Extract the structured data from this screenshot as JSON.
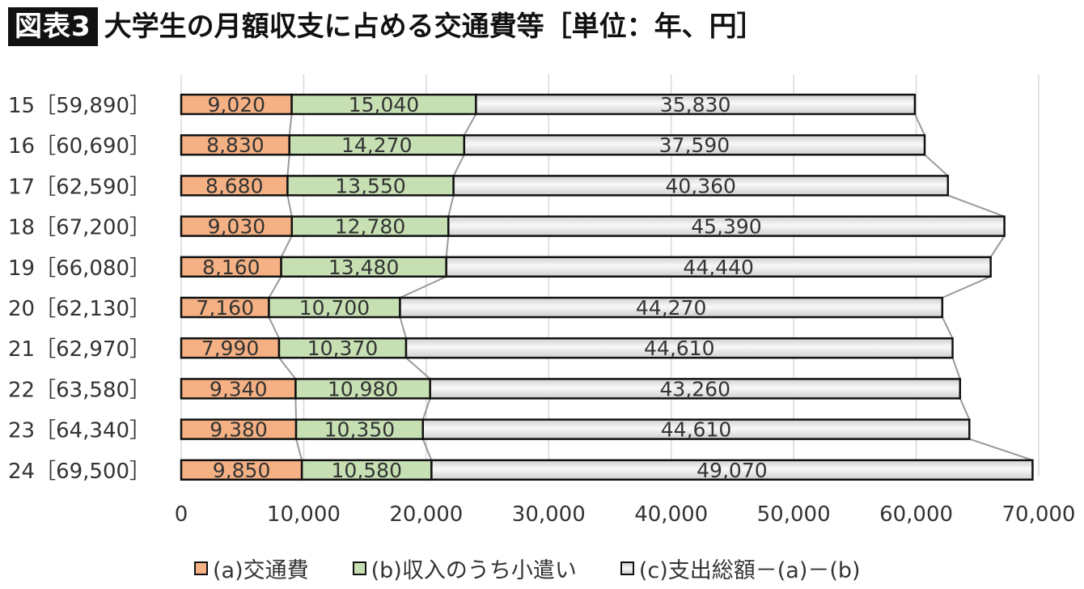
{
  "header": {
    "tag": "図表3",
    "title": "大学生の月額収支に占める交通費等［単位：年、円］"
  },
  "colors": {
    "a": "#f5b183",
    "b": "#c6e0b4",
    "c": "#e6e6e6",
    "outline": "#111111",
    "connector": "#999999",
    "grid": "#d9d9d9"
  },
  "chart_data": {
    "type": "bar",
    "orientation": "horizontal",
    "stacked": true,
    "categories": [
      "15",
      "16",
      "17",
      "18",
      "19",
      "20",
      "21",
      "22",
      "23",
      "24"
    ],
    "category_labels": [
      "15［59,890］",
      "16［60,690］",
      "17［62,590］",
      "18［67,200］",
      "19［66,080］",
      "20［62,130］",
      "21［62,970］",
      "22［63,580］",
      "23［64,340］",
      "24［69,500］"
    ],
    "series": [
      {
        "name": "(a)交通費",
        "values": [
          9020,
          8830,
          8680,
          9030,
          8160,
          7160,
          7990,
          9340,
          9380,
          9850
        ]
      },
      {
        "name": "(b)収入のうち小遣い",
        "values": [
          15040,
          14270,
          13550,
          12780,
          13480,
          10700,
          10370,
          10980,
          10350,
          10580
        ]
      },
      {
        "name": "(c)支出総額－(a)－(b)",
        "values": [
          35830,
          37590,
          40360,
          45390,
          44440,
          44270,
          44610,
          43260,
          44610,
          49070
        ]
      }
    ],
    "data_labels": [
      [
        "9,020",
        "15,040",
        "35,830"
      ],
      [
        "8,830",
        "14,270",
        "37,590"
      ],
      [
        "8,680",
        "13,550",
        "40,360"
      ],
      [
        "9,030",
        "12,780",
        "45,390"
      ],
      [
        "8,160",
        "13,480",
        "44,440"
      ],
      [
        "7,160",
        "10,700",
        "44,270"
      ],
      [
        "7,990",
        "10,370",
        "44,610"
      ],
      [
        "9,340",
        "10,980",
        "43,260"
      ],
      [
        "9,380",
        "10,350",
        "44,610"
      ],
      [
        "9,850",
        "10,580",
        "49,070"
      ]
    ],
    "xlim": [
      0,
      70000
    ],
    "x_ticks": [
      0,
      10000,
      20000,
      30000,
      40000,
      50000,
      60000,
      70000
    ],
    "x_tick_labels": [
      "0",
      "10,000",
      "20,000",
      "30,000",
      "40,000",
      "50,000",
      "60,000",
      "70,000"
    ],
    "grid": true,
    "series_lines": true,
    "legend_position": "bottom"
  }
}
